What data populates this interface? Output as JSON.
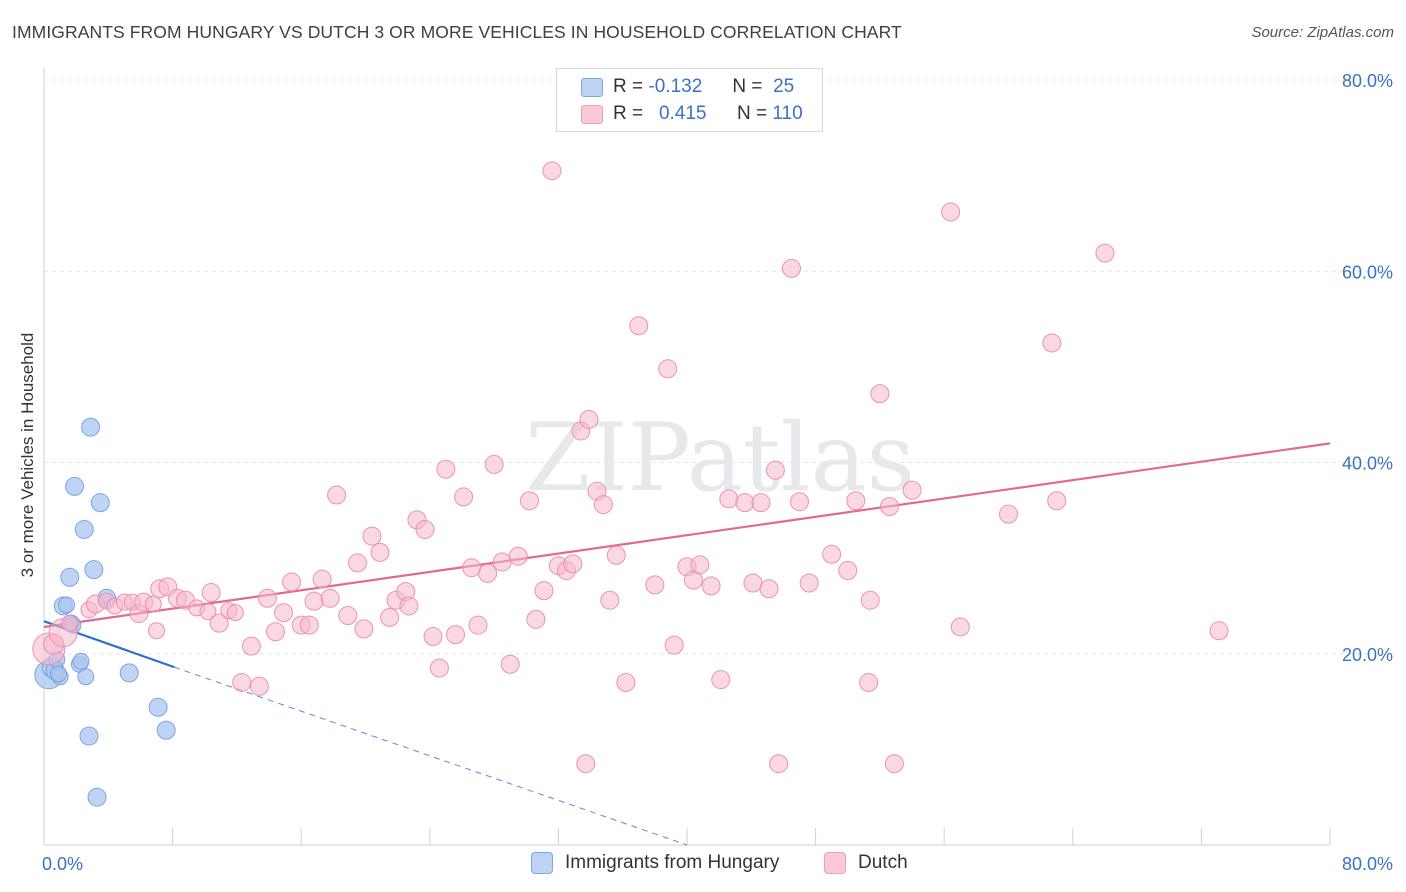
{
  "title": "IMMIGRANTS FROM HUNGARY VS DUTCH 3 OR MORE VEHICLES IN HOUSEHOLD CORRELATION CHART",
  "source": "Source: ZipAtlas.com",
  "watermark": "ZIPatlas",
  "legend": {
    "rows": [
      {
        "r_label": "R =",
        "r_value": "-0.132",
        "n_label": "N =",
        "n_value": "25",
        "color": "#a9c6ef",
        "border": "#6f9fe0"
      },
      {
        "r_label": "R =",
        "r_value": "0.415",
        "n_label": "N =",
        "n_value": "110",
        "color": "#f6b8cc",
        "border": "#ea8aa9"
      }
    ]
  },
  "bottom_legend": {
    "hungary": "Immigrants from Hungary",
    "dutch": "Dutch"
  },
  "chart_data": {
    "type": "scatter",
    "ylabel": "3 or more Vehicles in Household",
    "xlabel": "",
    "xlim": [
      0,
      80
    ],
    "ylim": [
      0,
      80
    ],
    "x_tick_labels": [
      "0.0%",
      "80.0%"
    ],
    "y_tick_labels": [
      "20.0%",
      "40.0%",
      "60.0%",
      "80.0%"
    ],
    "y_ticks": [
      20,
      40,
      60,
      80
    ],
    "grid": true,
    "legend_position": "top-center",
    "series": [
      {
        "name": "Immigrants from Hungary",
        "color": "#a9c6ef",
        "stroke": "#6f9fe0",
        "line_color": "#2f6fcc",
        "trend": {
          "x0": 0,
          "y0": 23.4,
          "x1": 8.1,
          "y1": 18.6,
          "dash_to_x": 40,
          "dash_to_y": 0
        },
        "points": [
          [
            0.3,
            17.8,
            14
          ],
          [
            0.5,
            18.6,
            10
          ],
          [
            0.7,
            18.2,
            9
          ],
          [
            1.0,
            17.6,
            8
          ],
          [
            0.8,
            19.4,
            8
          ],
          [
            1.2,
            25.0,
            9
          ],
          [
            1.4,
            25.1,
            8
          ],
          [
            1.6,
            28.0,
            9
          ],
          [
            1.9,
            37.5,
            9
          ],
          [
            1.7,
            23.2,
            8
          ],
          [
            2.2,
            18.9,
            8
          ],
          [
            2.3,
            19.2,
            8
          ],
          [
            2.5,
            33.0,
            9
          ],
          [
            2.6,
            17.6,
            8
          ],
          [
            2.9,
            43.7,
            9
          ],
          [
            3.1,
            28.8,
            9
          ],
          [
            3.5,
            35.8,
            9
          ],
          [
            3.9,
            25.8,
            9
          ],
          [
            2.8,
            11.4,
            9
          ],
          [
            3.3,
            5.0,
            9
          ],
          [
            5.3,
            18.0,
            9
          ],
          [
            7.1,
            14.4,
            9
          ],
          [
            7.6,
            12.0,
            9
          ],
          [
            1.8,
            23.0,
            8
          ],
          [
            0.9,
            17.9,
            8
          ]
        ]
      },
      {
        "name": "Dutch",
        "color": "#f6b8cc",
        "stroke": "#ea8aa9",
        "line_color": "#e06a94",
        "trend": {
          "x0": 0,
          "y0": 22.8,
          "x1": 80,
          "y1": 42.0
        },
        "points": [
          [
            0.3,
            20.5,
            16
          ],
          [
            0.6,
            21.0,
            10
          ],
          [
            1.2,
            22.2,
            14
          ],
          [
            1.6,
            23.2,
            8
          ],
          [
            2.8,
            24.6,
            8
          ],
          [
            3.2,
            25.2,
            9
          ],
          [
            3.9,
            25.5,
            8
          ],
          [
            4.4,
            25.0,
            8
          ],
          [
            5.0,
            25.4,
            8
          ],
          [
            5.5,
            25.4,
            8
          ],
          [
            5.9,
            24.2,
            9
          ],
          [
            6.2,
            25.4,
            9
          ],
          [
            6.8,
            25.2,
            8
          ],
          [
            7.2,
            26.8,
            9
          ],
          [
            7.7,
            27.0,
            9
          ],
          [
            8.3,
            25.8,
            9
          ],
          [
            8.8,
            25.6,
            9
          ],
          [
            9.5,
            24.8,
            8
          ],
          [
            10.2,
            24.4,
            8
          ],
          [
            10.4,
            26.4,
            9
          ],
          [
            10.9,
            23.2,
            9
          ],
          [
            11.5,
            24.5,
            8
          ],
          [
            11.9,
            24.3,
            8
          ],
          [
            12.3,
            17.0,
            9
          ],
          [
            12.9,
            20.8,
            9
          ],
          [
            13.4,
            16.6,
            9
          ],
          [
            13.9,
            25.8,
            9
          ],
          [
            14.4,
            22.3,
            9
          ],
          [
            14.9,
            24.3,
            9
          ],
          [
            15.4,
            27.5,
            9
          ],
          [
            16.0,
            23.0,
            9
          ],
          [
            16.5,
            23.0,
            9
          ],
          [
            16.8,
            25.5,
            9
          ],
          [
            17.3,
            27.8,
            9
          ],
          [
            17.8,
            25.8,
            9
          ],
          [
            18.2,
            36.6,
            9
          ],
          [
            18.9,
            24.0,
            9
          ],
          [
            19.5,
            29.5,
            9
          ],
          [
            19.9,
            22.6,
            9
          ],
          [
            20.4,
            32.3,
            9
          ],
          [
            20.9,
            30.6,
            9
          ],
          [
            21.5,
            23.8,
            9
          ],
          [
            21.9,
            25.6,
            9
          ],
          [
            22.5,
            26.5,
            9
          ],
          [
            22.7,
            25.0,
            9
          ],
          [
            23.2,
            34.0,
            9
          ],
          [
            23.7,
            33.0,
            9
          ],
          [
            24.2,
            21.8,
            9
          ],
          [
            24.6,
            18.5,
            9
          ],
          [
            25.0,
            39.3,
            9
          ],
          [
            25.6,
            22.0,
            9
          ],
          [
            26.1,
            36.4,
            9
          ],
          [
            26.6,
            29.0,
            9
          ],
          [
            27.0,
            23.0,
            9
          ],
          [
            27.6,
            28.4,
            9
          ],
          [
            28.0,
            39.8,
            9
          ],
          [
            28.5,
            29.6,
            9
          ],
          [
            29.0,
            18.9,
            9
          ],
          [
            29.5,
            30.2,
            9
          ],
          [
            30.2,
            36.0,
            9
          ],
          [
            30.6,
            23.6,
            9
          ],
          [
            31.1,
            26.6,
            9
          ],
          [
            31.6,
            70.5,
            9
          ],
          [
            32.0,
            29.2,
            9
          ],
          [
            32.5,
            28.7,
            9
          ],
          [
            32.9,
            29.4,
            9
          ],
          [
            33.4,
            43.3,
            9
          ],
          [
            33.9,
            44.5,
            9
          ],
          [
            34.4,
            37.0,
            9
          ],
          [
            34.8,
            35.6,
            9
          ],
          [
            35.2,
            25.6,
            9
          ],
          [
            35.6,
            30.3,
            9
          ],
          [
            36.2,
            17.0,
            9
          ],
          [
            37.0,
            54.3,
            9
          ],
          [
            38.0,
            27.2,
            9
          ],
          [
            38.8,
            49.8,
            9
          ],
          [
            39.2,
            20.9,
            9
          ],
          [
            40.0,
            29.1,
            9
          ],
          [
            40.4,
            27.7,
            9
          ],
          [
            40.8,
            29.3,
            9
          ],
          [
            41.5,
            27.1,
            9
          ],
          [
            42.1,
            17.3,
            9
          ],
          [
            42.6,
            36.2,
            9
          ],
          [
            43.6,
            35.8,
            9
          ],
          [
            44.1,
            27.4,
            9
          ],
          [
            44.6,
            35.8,
            9
          ],
          [
            45.1,
            26.8,
            9
          ],
          [
            45.5,
            39.2,
            9
          ],
          [
            46.5,
            60.3,
            9
          ],
          [
            47.0,
            35.9,
            9
          ],
          [
            47.6,
            27.4,
            9
          ],
          [
            49.0,
            30.4,
            9
          ],
          [
            50.0,
            28.7,
            9
          ],
          [
            50.5,
            36.0,
            9
          ],
          [
            51.3,
            17.0,
            9
          ],
          [
            52.0,
            47.2,
            9
          ],
          [
            52.6,
            35.4,
            9
          ],
          [
            52.9,
            8.5,
            9
          ],
          [
            54.0,
            37.1,
            9
          ],
          [
            56.4,
            66.2,
            9
          ],
          [
            57.0,
            22.8,
            9
          ],
          [
            60.0,
            34.6,
            9
          ],
          [
            62.7,
            52.5,
            9
          ],
          [
            63.0,
            36.0,
            9
          ],
          [
            66.0,
            61.9,
            9
          ],
          [
            73.1,
            22.4,
            9
          ],
          [
            33.7,
            8.5,
            9
          ],
          [
            45.7,
            8.5,
            9
          ],
          [
            51.4,
            25.6,
            9
          ],
          [
            7.0,
            22.4,
            8
          ]
        ]
      }
    ]
  }
}
